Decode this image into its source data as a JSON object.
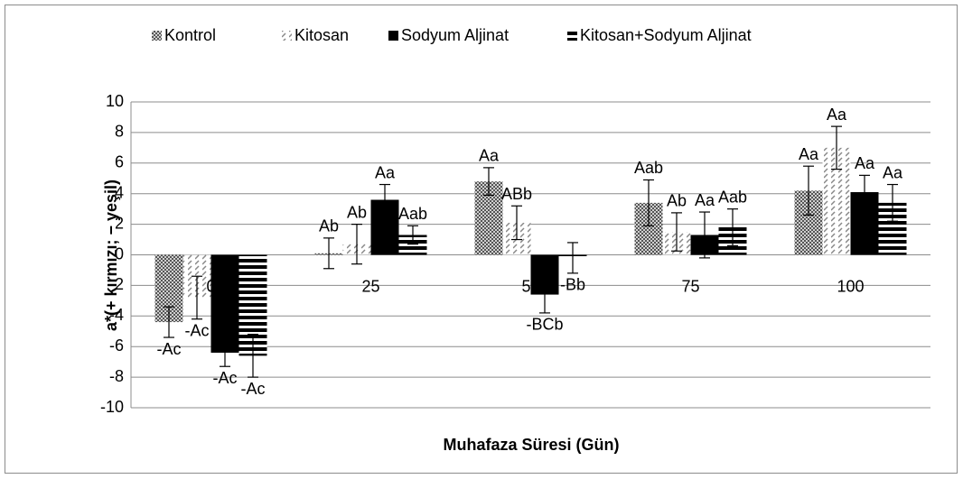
{
  "chart_data": {
    "type": "bar",
    "y_label": "a*(+ kırmızı; − yeşil)",
    "x_label": "Muhafaza Süresi (Gün)",
    "categories": [
      "0",
      "25",
      "50",
      "75",
      "100"
    ],
    "ylim": [
      -10,
      10
    ],
    "yticks": [
      -10,
      -8,
      -6,
      -4,
      -2,
      0,
      2,
      4,
      6,
      8,
      10
    ],
    "grid": true,
    "legend": "top",
    "series": [
      {
        "name": "Kontrol",
        "color": "#7f7f7f",
        "pattern": "checker",
        "values": [
          -4.4,
          0.1,
          4.8,
          3.4,
          4.2
        ],
        "errors": [
          1.0,
          1.0,
          0.9,
          1.5,
          1.6
        ],
        "labels": [
          "-Ac",
          "Ab",
          "Aa",
          "Aab",
          "Aa"
        ]
      },
      {
        "name": "Kitosan",
        "color": "#9a9a9a",
        "pattern": "diagonal",
        "values": [
          -2.8,
          0.7,
          2.1,
          1.5,
          7.0
        ],
        "errors": [
          1.4,
          1.3,
          1.1,
          1.25,
          1.4
        ],
        "labels": [
          "-Ac",
          "Ab",
          "ABb",
          "Ab",
          "Aa"
        ]
      },
      {
        "name": "Sodyum Aljinat",
        "color": "#000000",
        "pattern": "solid",
        "values": [
          -6.4,
          3.6,
          -2.6,
          1.3,
          4.1
        ],
        "errors": [
          0.9,
          1.0,
          1.2,
          1.5,
          1.1
        ],
        "labels": [
          "-Ac",
          "Aa",
          "-BCb",
          "Aa",
          "Aa"
        ]
      },
      {
        "name": "Kitosan+Sodyum Aljinat",
        "color": "#000000",
        "pattern": "horizontal",
        "values": [
          -6.6,
          1.3,
          -0.2,
          1.8,
          3.4
        ],
        "errors": [
          1.4,
          0.6,
          1.0,
          1.2,
          1.2
        ],
        "labels": [
          "-Ac",
          "Aab",
          "-Bb",
          "Aab",
          "Aa"
        ]
      }
    ]
  }
}
